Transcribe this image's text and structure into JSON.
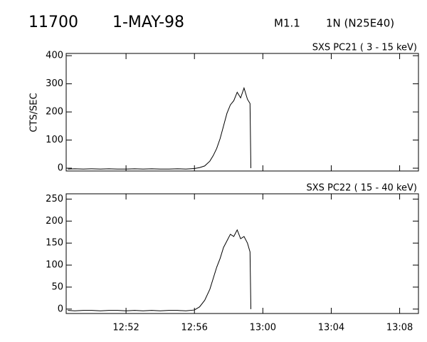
{
  "header": {
    "id": "11700",
    "date": "1-MAY-98",
    "class": "M1.1",
    "location": "1N (N25E40)"
  },
  "chart_data": [
    {
      "type": "line",
      "title": "SXS PC21  (  3 - 15 keV)",
      "ylabel": "CTS/SEC",
      "x": [
        768.6,
        769.0,
        769.5,
        770.0,
        770.5,
        771.0,
        771.5,
        772.0,
        772.5,
        773.0,
        773.5,
        774.0,
        774.5,
        775.0,
        775.5,
        776.0,
        776.3,
        776.6,
        776.9,
        777.1,
        777.3,
        777.5,
        777.7,
        777.9,
        778.1,
        778.3,
        778.5,
        778.7,
        778.9,
        779.1,
        779.25,
        779.3
      ],
      "series": [
        {
          "color": "#000000",
          "values": [
            -3,
            -2,
            -3,
            -2,
            -3,
            -2,
            -3,
            -3,
            -2,
            -3,
            -2,
            -3,
            -3,
            -2,
            -3,
            -1,
            2,
            8,
            25,
            45,
            70,
            105,
            150,
            195,
            225,
            240,
            270,
            250,
            285,
            245,
            230,
            0
          ]
        }
      ],
      "xlim": [
        768.5,
        789.1
      ],
      "xticks": [
        772,
        776,
        780,
        784,
        788
      ],
      "ylim": [
        -10,
        408
      ],
      "yticks": [
        0,
        100,
        200,
        300,
        400
      ]
    },
    {
      "type": "line",
      "title": "SXS PC22  ( 15 - 40 keV)",
      "x": [
        768.6,
        769.0,
        769.5,
        770.0,
        770.5,
        771.0,
        771.5,
        772.0,
        772.5,
        773.0,
        773.5,
        774.0,
        774.5,
        775.0,
        775.5,
        776.0,
        776.3,
        776.6,
        776.9,
        777.1,
        777.3,
        777.5,
        777.7,
        777.9,
        778.1,
        778.3,
        778.5,
        778.7,
        778.9,
        779.1,
        779.25,
        779.3
      ],
      "series": [
        {
          "color": "#000000",
          "values": [
            -3,
            -4,
            -3,
            -3,
            -4,
            -3,
            -3,
            -4,
            -3,
            -4,
            -3,
            -4,
            -3,
            -3,
            -4,
            -2,
            5,
            20,
            45,
            70,
            95,
            115,
            140,
            155,
            170,
            165,
            180,
            160,
            165,
            150,
            130,
            0
          ]
        }
      ],
      "xlim": [
        768.5,
        789.1
      ],
      "xticks": [
        {
          "value": 772,
          "label": "12:52"
        },
        {
          "value": 776,
          "label": "12:56"
        },
        {
          "value": 780,
          "label": "13:00"
        },
        {
          "value": 784,
          "label": "13:04"
        },
        {
          "value": 788,
          "label": "13:08"
        }
      ],
      "ylim": [
        -10,
        262
      ],
      "yticks": [
        0,
        50,
        100,
        150,
        200,
        250
      ]
    }
  ]
}
